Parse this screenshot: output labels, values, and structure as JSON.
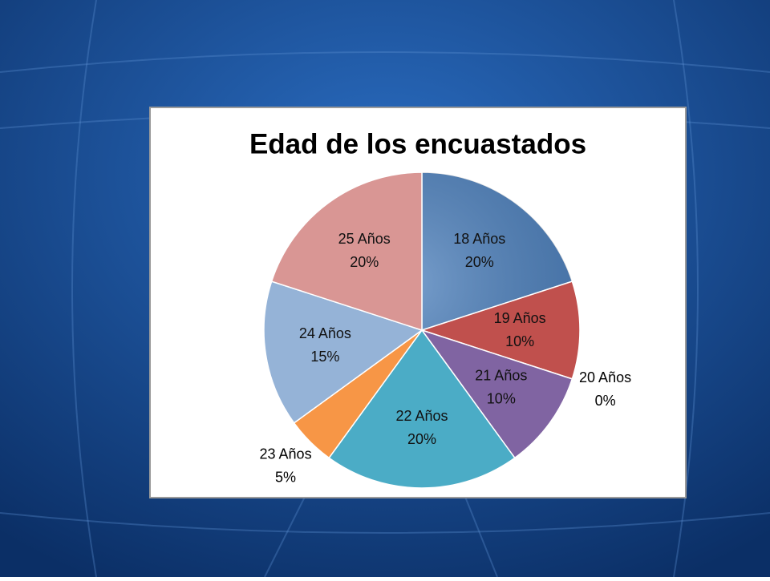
{
  "chart_data": {
    "type": "pie",
    "title": "Edad de los encuastados",
    "categories": [
      "18 Años",
      "19 Años",
      "20 Años",
      "21 Años",
      "22 Años",
      "23 Años",
      "24 Años",
      "25 Años"
    ],
    "values": [
      20,
      10,
      0,
      10,
      20,
      5,
      15,
      20
    ],
    "value_labels": [
      "20%",
      "10%",
      "0%",
      "10%",
      "20%",
      "5%",
      "15%",
      "20%"
    ],
    "colors": [
      "#4a7ebb",
      "#c0504d",
      "#9bbb59",
      "#8064a2",
      "#4bacc6",
      "#f79646",
      "#95b3d7",
      "#d99694"
    ]
  }
}
